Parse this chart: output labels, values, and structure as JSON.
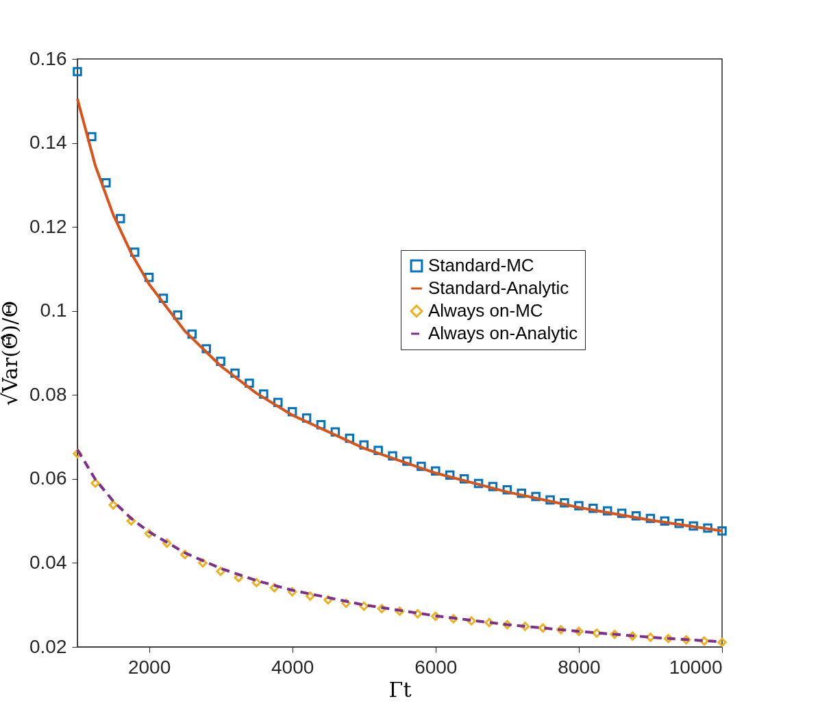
{
  "chart_data": {
    "type": "scatter",
    "xlabel": "Γt",
    "ylabel": "√Var(Θ̂)/Θ",
    "xlim": [
      1000,
      10000
    ],
    "xticks": [
      2000,
      4000,
      6000,
      8000,
      10000
    ],
    "ylim": [
      0.02,
      0.16
    ],
    "yticks": [
      0.02,
      0.04,
      0.06,
      0.08,
      {
        "value": 0.1,
        "label": "0.1"
      },
      0.12,
      0.14,
      0.16
    ],
    "grid": false,
    "legend": "right",
    "series": [
      {
        "name": "Standard-MC",
        "type": "scatter",
        "marker": "square",
        "color": "#0072bd",
        "x": [
          1000,
          1200,
          1400,
          1600,
          1800,
          2000,
          2200,
          2400,
          2600,
          2800,
          3000,
          3200,
          3400,
          3600,
          3800,
          4000,
          4200,
          4400,
          4600,
          4800,
          5000,
          5200,
          5400,
          5600,
          5800,
          6000,
          6200,
          6400,
          6600,
          6800,
          7000,
          7200,
          7400,
          7600,
          7800,
          8000,
          8200,
          8400,
          8600,
          8800,
          9000,
          9200,
          9400,
          9600,
          9800,
          10000
        ],
        "values": [
          0.157,
          0.1415,
          0.1305,
          0.122,
          0.114,
          0.108,
          0.103,
          0.099,
          0.0945,
          0.091,
          0.088,
          0.0852,
          0.0828,
          0.0802,
          0.0782,
          0.076,
          0.0745,
          0.0729,
          0.0712,
          0.0697,
          0.0681,
          0.0668,
          0.0655,
          0.0642,
          0.063,
          0.0619,
          0.0609,
          0.06,
          0.0589,
          0.0582,
          0.0574,
          0.0566,
          0.0558,
          0.055,
          0.0543,
          0.0536,
          0.053,
          0.0524,
          0.0518,
          0.0512,
          0.0506,
          0.05,
          0.0494,
          0.0488,
          0.0483,
          0.0476
        ]
      },
      {
        "name": "Standard-Analytic",
        "type": "line",
        "line_style": "solid",
        "color": "#d95319",
        "x": [
          1000,
          1250,
          1500,
          1750,
          2000,
          2500,
          3000,
          3500,
          4000,
          5000,
          6000,
          7000,
          8000,
          9000,
          10000
        ],
        "values": [
          0.1505,
          0.1346,
          0.1229,
          0.1138,
          0.1064,
          0.0952,
          0.0869,
          0.0804,
          0.0752,
          0.0673,
          0.0614,
          0.0569,
          0.0532,
          0.0502,
          0.0476
        ]
      },
      {
        "name": "Always on-MC",
        "type": "scatter",
        "marker": "diamond",
        "color": "#edb120",
        "x": [
          1000,
          1250,
          1500,
          1750,
          2000,
          2250,
          2500,
          2750,
          3000,
          3250,
          3500,
          3750,
          4000,
          4250,
          4500,
          4750,
          5000,
          5250,
          5500,
          5750,
          6000,
          6250,
          6500,
          6750,
          7000,
          7250,
          7500,
          7750,
          8000,
          8250,
          8500,
          8750,
          9000,
          9250,
          9500,
          9750,
          10000
        ],
        "values": [
          0.066,
          0.059,
          0.0538,
          0.05,
          0.047,
          0.0447,
          0.042,
          0.04,
          0.038,
          0.0365,
          0.0353,
          0.0341,
          0.0331,
          0.0321,
          0.0312,
          0.0304,
          0.0297,
          0.0291,
          0.0285,
          0.0279,
          0.0273,
          0.0267,
          0.0262,
          0.0258,
          0.0253,
          0.0249,
          0.0245,
          0.0241,
          0.0237,
          0.0233,
          0.023,
          0.0226,
          0.0223,
          0.022,
          0.0217,
          0.0214,
          0.0211
        ]
      },
      {
        "name": "Always on-Analytic",
        "type": "line",
        "line_style": "dashed",
        "color": "#7e2f8e",
        "x": [
          1000,
          1250,
          1500,
          1750,
          2000,
          2500,
          3000,
          3500,
          4000,
          5000,
          6000,
          7000,
          8000,
          9000,
          10000
        ],
        "values": [
          0.067,
          0.0599,
          0.0547,
          0.0506,
          0.0474,
          0.0424,
          0.0387,
          0.0358,
          0.0335,
          0.03,
          0.0274,
          0.0253,
          0.0237,
          0.0223,
          0.0212
        ]
      }
    ]
  }
}
